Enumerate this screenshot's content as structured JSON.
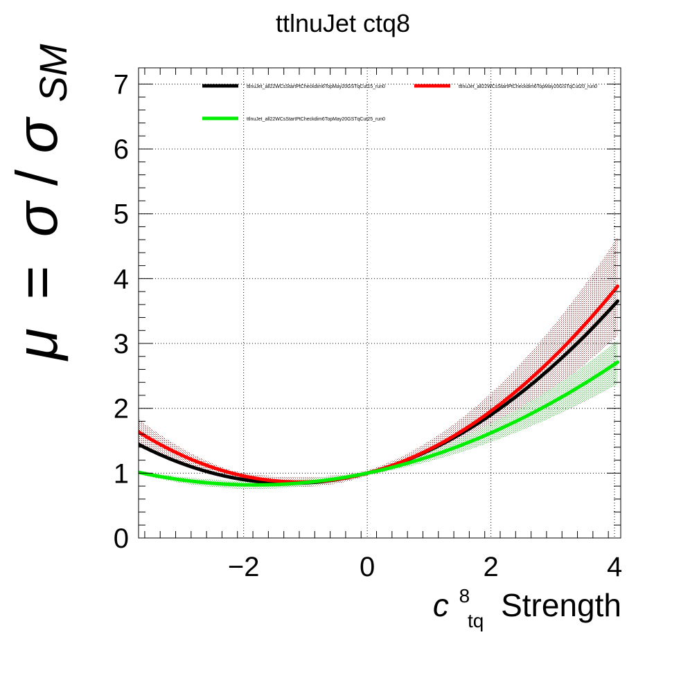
{
  "chart_data": {
    "type": "line",
    "title": "ttlnuJet ctq8",
    "ylabel": {
      "mu": "μ",
      "eq": "=",
      "sigma": "σ",
      "slash": "/",
      "sigma2": "σ",
      "sub": "SM"
    },
    "xlabel": {
      "c": "c",
      "sup": "8",
      "sub": "tq",
      "rest": "Strength"
    },
    "xlim": [
      -3.7,
      4.1
    ],
    "ylim": [
      0,
      7.25
    ],
    "x_ticks": [
      -2,
      0,
      2,
      4
    ],
    "x_tick_labels": [
      "−2",
      "0",
      "2",
      "4"
    ],
    "y_ticks": [
      0,
      1,
      2,
      3,
      4,
      5,
      6,
      7
    ],
    "y_tick_labels": [
      "0",
      "1",
      "2",
      "3",
      "4",
      "5",
      "6",
      "7"
    ],
    "grid": true,
    "legend_position": "top",
    "series": [
      {
        "name": "ttlnuJet_all22WCsStartPtCheckdim6TopMay20GSTqCut15_run0",
        "color": "#000000",
        "band_color": "#8b3a3a",
        "coef": [
          1,
          0.25,
          0.1
        ],
        "band": 0.0,
        "x": [
          -3.7,
          4.05
        ],
        "y": [
          1.44,
          3.65
        ]
      },
      {
        "name": "ttlnuJet_all22WCsStartPtCheckdim6TopMay20GSTqCut20_run0",
        "color": "#ff0000",
        "band_color": "#8b1a1a",
        "coef": [
          1,
          0.25,
          0.114
        ],
        "band": 0.25,
        "x": [
          -3.7,
          4.05
        ],
        "y": [
          1.64,
          3.88
        ]
      },
      {
        "name": "ttlnuJet_all22WCsStartPtCheckdim6TopMay20GSTqCut25_run0",
        "color": "#00ee00",
        "band_color": "#3fbf3f",
        "coef": [
          1,
          0.2,
          0.055
        ],
        "band": 0.18,
        "x": [
          -3.7,
          4.05
        ],
        "y": [
          1.01,
          2.71
        ]
      }
    ]
  }
}
